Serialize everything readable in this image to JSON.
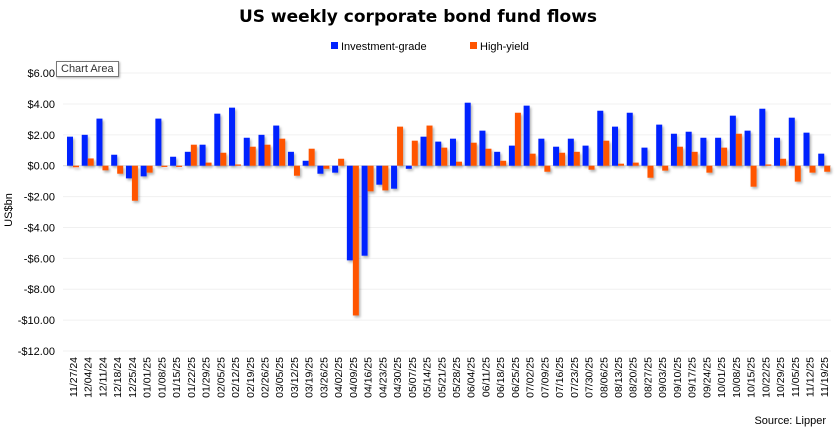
{
  "tooltip": "Chart Area",
  "source": "Source: Lipper",
  "chart_data": {
    "type": "bar",
    "title": "US weekly corporate bond fund flows",
    "xlabel": "",
    "ylabel": "US$bn",
    "ylim": [
      -12,
      6
    ],
    "yticks": [
      6,
      4,
      2,
      0,
      -2,
      -4,
      -6,
      -8,
      -10,
      -12
    ],
    "ytick_labels": [
      "$6.00",
      "$4.00",
      "$2.00",
      "$0.00",
      "-$2.00",
      "-$4.00",
      "-$6.00",
      "-$8.00",
      "-$10.00",
      "-$12.00"
    ],
    "legend_position": "top-center",
    "colors": {
      "Investment-grade": "#0022ff",
      "High-yield": "#ff5500"
    },
    "categories": [
      "11/27/24",
      "12/04/24",
      "12/11/24",
      "12/18/24",
      "12/25/24",
      "01/01/25",
      "01/08/25",
      "01/15/25",
      "01/22/25",
      "01/29/25",
      "02/05/25",
      "02/12/25",
      "02/19/25",
      "02/26/25",
      "03/05/25",
      "03/12/25",
      "03/19/25",
      "03/26/25",
      "04/02/25",
      "04/09/25",
      "04/16/25",
      "04/23/25",
      "04/30/25",
      "05/07/25",
      "05/14/25",
      "05/21/25",
      "05/28/25",
      "06/04/25",
      "06/11/25",
      "06/18/25",
      "06/25/25",
      "07/02/25",
      "07/09/25",
      "07/16/25",
      "07/23/25",
      "07/30/25",
      "08/06/25",
      "08/13/25",
      "08/20/25",
      "08/27/25",
      "09/03/25",
      "09/10/25",
      "09/17/25",
      "09/24/25",
      "10/01/25",
      "10/08/25",
      "10/15/25",
      "10/22/25",
      "10/29/25",
      "11/05/25",
      "11/12/25",
      "11/19/25"
    ],
    "series": [
      {
        "name": "Investment-grade",
        "values": [
          1.88,
          2.0,
          3.05,
          0.71,
          -0.82,
          -0.69,
          3.05,
          0.58,
          0.9,
          1.36,
          3.37,
          3.76,
          1.81,
          2.0,
          2.6,
          0.9,
          0.32,
          -0.52,
          -0.45,
          -6.13,
          -5.83,
          -1.23,
          -1.49,
          -0.2,
          1.88,
          1.56,
          1.75,
          4.08,
          2.27,
          0.9,
          1.3,
          3.89,
          1.75,
          1.23,
          1.75,
          1.3,
          3.56,
          2.53,
          3.43,
          1.17,
          2.66,
          2.07,
          2.2,
          1.81,
          1.81,
          3.24,
          2.27,
          3.69,
          1.81,
          3.11,
          2.14,
          0.78
        ]
      },
      {
        "name": "High-yield",
        "values": [
          -0.1,
          0.47,
          -0.3,
          -0.52,
          -2.27,
          -0.45,
          -0.08,
          -0.08,
          1.36,
          0.2,
          0.84,
          0.08,
          1.23,
          1.36,
          1.75,
          -0.65,
          1.1,
          -0.2,
          0.45,
          -9.7,
          -1.66,
          -1.6,
          2.53,
          1.62,
          2.6,
          1.17,
          0.26,
          1.49,
          1.1,
          0.32,
          3.43,
          0.78,
          -0.39,
          0.84,
          0.9,
          -0.26,
          1.62,
          0.13,
          0.2,
          -0.78,
          -0.32,
          1.23,
          0.9,
          -0.45,
          1.17,
          2.07,
          -1.36,
          0.08,
          0.45,
          -1.03,
          -0.45,
          -0.39
        ]
      }
    ]
  }
}
